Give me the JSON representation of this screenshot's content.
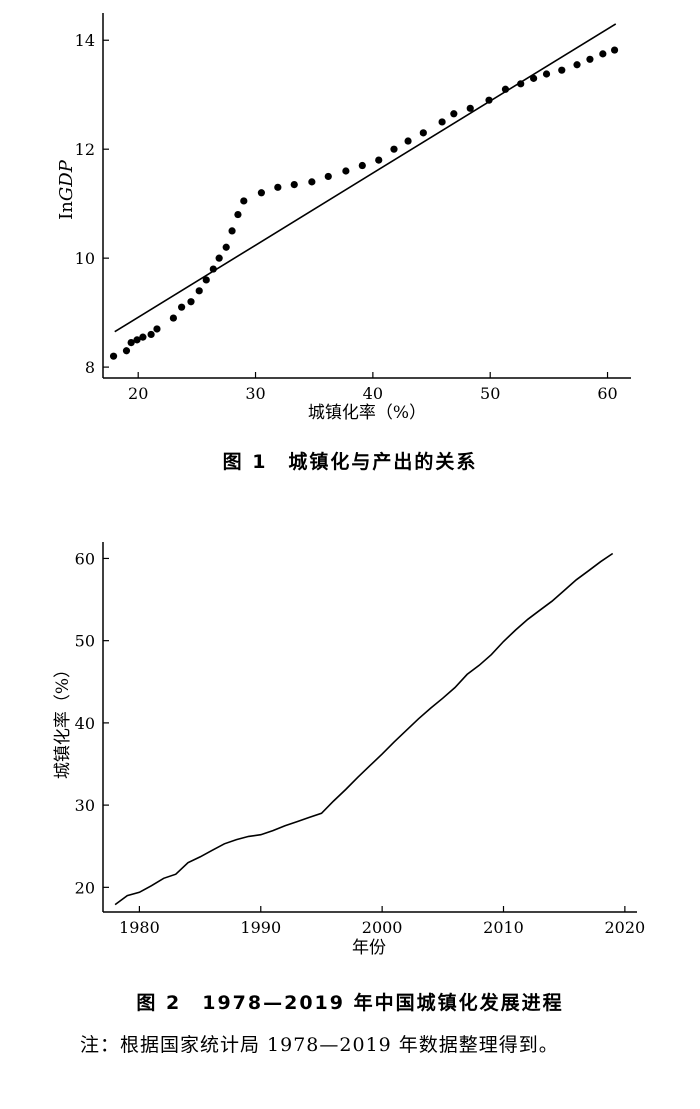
{
  "chart_data": [
    {
      "type": "scatter",
      "title": "图 1　城镇化与产出的关系",
      "xlabel": "城镇化率（%）",
      "ylabel_prefix": "In",
      "ylabel_italic": "GDP",
      "xlim": [
        17,
        62
      ],
      "ylim": [
        7.8,
        14.5
      ],
      "xticks": [
        20,
        30,
        40,
        50,
        60
      ],
      "yticks": [
        8,
        10,
        12,
        14
      ],
      "grid": false,
      "x": [
        17.9,
        19.0,
        19.4,
        19.9,
        20.4,
        21.1,
        21.6,
        23.0,
        23.7,
        24.5,
        25.2,
        25.8,
        26.4,
        26.9,
        27.5,
        28.0,
        28.5,
        29.0,
        30.5,
        31.9,
        33.3,
        34.8,
        36.2,
        37.7,
        39.1,
        40.5,
        41.8,
        43.0,
        44.3,
        45.9,
        46.9,
        48.3,
        49.9,
        51.3,
        52.6,
        53.7,
        54.8,
        56.1,
        57.4,
        58.5,
        59.6,
        60.6
      ],
      "y": [
        8.2,
        8.3,
        8.45,
        8.5,
        8.55,
        8.6,
        8.7,
        8.9,
        9.1,
        9.2,
        9.4,
        9.6,
        9.8,
        10.0,
        10.2,
        10.5,
        10.8,
        11.05,
        11.2,
        11.3,
        11.35,
        11.4,
        11.5,
        11.6,
        11.7,
        11.8,
        12.0,
        12.15,
        12.3,
        12.5,
        12.65,
        12.75,
        12.9,
        13.1,
        13.2,
        13.3,
        13.38,
        13.45,
        13.55,
        13.65,
        13.75,
        13.82
      ],
      "fit_line": {
        "x": [
          18.0,
          60.7
        ],
        "y": [
          8.65,
          14.3
        ]
      }
    },
    {
      "type": "line",
      "title": "图 2　1978—2019 年中国城镇化发展进程",
      "xlabel": "年份",
      "ylabel": "城镇化率（%）",
      "xlim": [
        1977,
        2021
      ],
      "ylim": [
        17,
        62
      ],
      "xticks": [
        1980,
        1990,
        2000,
        2010,
        2020
      ],
      "yticks": [
        20,
        30,
        40,
        50,
        60
      ],
      "grid": false,
      "x": [
        1978,
        1979,
        1980,
        1981,
        1982,
        1983,
        1984,
        1985,
        1986,
        1987,
        1988,
        1989,
        1990,
        1991,
        1992,
        1993,
        1994,
        1995,
        1996,
        1997,
        1998,
        1999,
        2000,
        2001,
        2002,
        2003,
        2004,
        2005,
        2006,
        2007,
        2008,
        2009,
        2010,
        2011,
        2012,
        2013,
        2014,
        2015,
        2016,
        2017,
        2018,
        2019
      ],
      "y": [
        17.9,
        19.0,
        19.4,
        20.2,
        21.1,
        21.6,
        23.0,
        23.7,
        24.5,
        25.3,
        25.8,
        26.2,
        26.4,
        26.9,
        27.5,
        28.0,
        28.5,
        29.0,
        30.5,
        31.9,
        33.4,
        34.8,
        36.2,
        37.7,
        39.1,
        40.5,
        41.8,
        43.0,
        44.3,
        45.9,
        47.0,
        48.3,
        49.9,
        51.3,
        52.6,
        53.7,
        54.8,
        56.1,
        57.4,
        58.5,
        59.6,
        60.6
      ]
    }
  ],
  "note": "注：根据国家统计局 1978—2019 年数据整理得到。"
}
